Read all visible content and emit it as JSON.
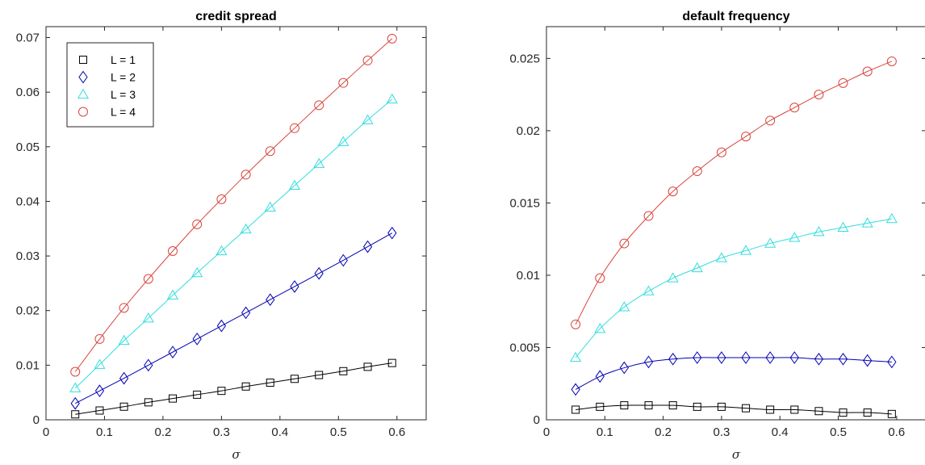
{
  "chart_data": [
    {
      "type": "line",
      "title": "credit spread",
      "xlabel": "σ",
      "ylabel": "",
      "xlim": [
        0,
        0.65
      ],
      "ylim": [
        0,
        0.072
      ],
      "xticks": [
        0,
        0.1,
        0.2,
        0.3,
        0.4,
        0.5,
        0.6
      ],
      "xtick_labels": [
        "0",
        "0.1",
        "0.2",
        "0.3",
        "0.4",
        "0.5",
        "0.6"
      ],
      "yticks": [
        0,
        0.01,
        0.02,
        0.03,
        0.04,
        0.05,
        0.06,
        0.07
      ],
      "ytick_labels": [
        "0",
        "0.01",
        "0.02",
        "0.03",
        "0.04",
        "0.05",
        "0.06",
        "0.07"
      ],
      "grid": false,
      "legend_position": "top-left",
      "x": [
        0.05,
        0.0917,
        0.1333,
        0.175,
        0.2167,
        0.2583,
        0.3,
        0.3417,
        0.3833,
        0.425,
        0.4667,
        0.5083,
        0.55,
        0.5917
      ],
      "series": [
        {
          "name": "L = 1",
          "marker": "square",
          "color": "#000000",
          "values": [
            0.001,
            0.0017,
            0.0024,
            0.0032,
            0.0039,
            0.0046,
            0.0053,
            0.0061,
            0.0068,
            0.0075,
            0.0082,
            0.0089,
            0.0097,
            0.0104
          ]
        },
        {
          "name": "L = 2",
          "marker": "diamond",
          "color": "#0000b3",
          "values": [
            0.003,
            0.0053,
            0.0076,
            0.01,
            0.0124,
            0.0148,
            0.0172,
            0.0196,
            0.022,
            0.0244,
            0.0268,
            0.0292,
            0.0317,
            0.0342
          ]
        },
        {
          "name": "L = 3",
          "marker": "triangle",
          "color": "#33dddd",
          "values": [
            0.0058,
            0.0101,
            0.0145,
            0.0186,
            0.0228,
            0.0269,
            0.0309,
            0.0349,
            0.0389,
            0.0429,
            0.0469,
            0.0509,
            0.0549,
            0.0587
          ]
        },
        {
          "name": "L = 4",
          "marker": "circle",
          "color": "#d9453d",
          "values": [
            0.0088,
            0.0148,
            0.0205,
            0.0258,
            0.0309,
            0.0358,
            0.0404,
            0.0449,
            0.0492,
            0.0534,
            0.0576,
            0.0617,
            0.0658,
            0.0698
          ]
        }
      ]
    },
    {
      "type": "line",
      "title": "default frequency",
      "xlabel": "σ",
      "ylabel": "",
      "xlim": [
        0,
        0.65
      ],
      "ylim": [
        0,
        0.0272
      ],
      "xticks": [
        0,
        0.1,
        0.2,
        0.3,
        0.4,
        0.5,
        0.6
      ],
      "xtick_labels": [
        "0",
        "0.1",
        "0.2",
        "0.3",
        "0.4",
        "0.5",
        "0.6"
      ],
      "yticks": [
        0,
        0.005,
        0.01,
        0.015,
        0.02,
        0.025
      ],
      "ytick_labels": [
        "0",
        "0.005",
        "0.01",
        "0.015",
        "0.02",
        "0.025"
      ],
      "grid": false,
      "legend_position": "none",
      "x": [
        0.05,
        0.0917,
        0.1333,
        0.175,
        0.2167,
        0.2583,
        0.3,
        0.3417,
        0.3833,
        0.425,
        0.4667,
        0.5083,
        0.55,
        0.5917
      ],
      "series": [
        {
          "marker": "square",
          "color": "#000000",
          "values": [
            0.0007,
            0.0009,
            0.001,
            0.001,
            0.001,
            0.0009,
            0.0009,
            0.0008,
            0.0007,
            0.0007,
            0.0006,
            0.0005,
            0.0005,
            0.0004
          ]
        },
        {
          "marker": "diamond",
          "color": "#0000b3",
          "values": [
            0.0021,
            0.003,
            0.0036,
            0.004,
            0.0042,
            0.0043,
            0.0043,
            0.0043,
            0.0043,
            0.0043,
            0.0042,
            0.0042,
            0.0041,
            0.004
          ]
        },
        {
          "marker": "triangle",
          "color": "#33dddd",
          "values": [
            0.0043,
            0.0063,
            0.0078,
            0.0089,
            0.0098,
            0.0105,
            0.0112,
            0.0117,
            0.0122,
            0.0126,
            0.013,
            0.0133,
            0.0136,
            0.0139
          ]
        },
        {
          "marker": "circle",
          "color": "#d9453d",
          "values": [
            0.0066,
            0.0098,
            0.0122,
            0.0141,
            0.0158,
            0.0172,
            0.0185,
            0.0196,
            0.0207,
            0.0216,
            0.0225,
            0.0233,
            0.0241,
            0.0248
          ]
        }
      ]
    }
  ]
}
